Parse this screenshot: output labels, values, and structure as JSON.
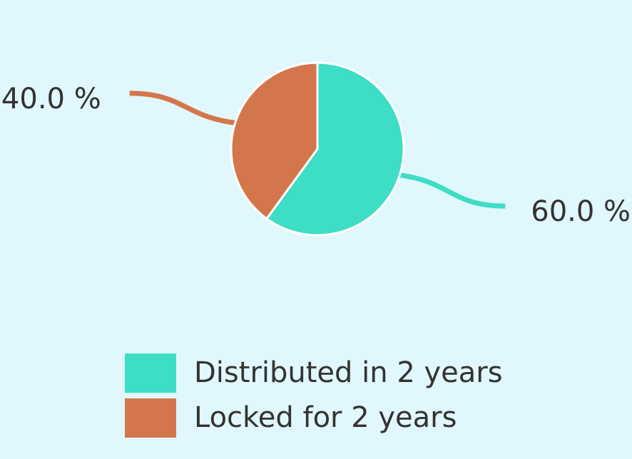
{
  "chart_data": {
    "type": "pie",
    "categories": [
      "Distributed in 2 years",
      "Locked for 2 years"
    ],
    "values": [
      60,
      40
    ],
    "value_labels": [
      "60.0 %",
      "40.0 %"
    ],
    "colors": [
      "#3ddec5",
      "#d4764b"
    ],
    "legend": "bottom"
  }
}
